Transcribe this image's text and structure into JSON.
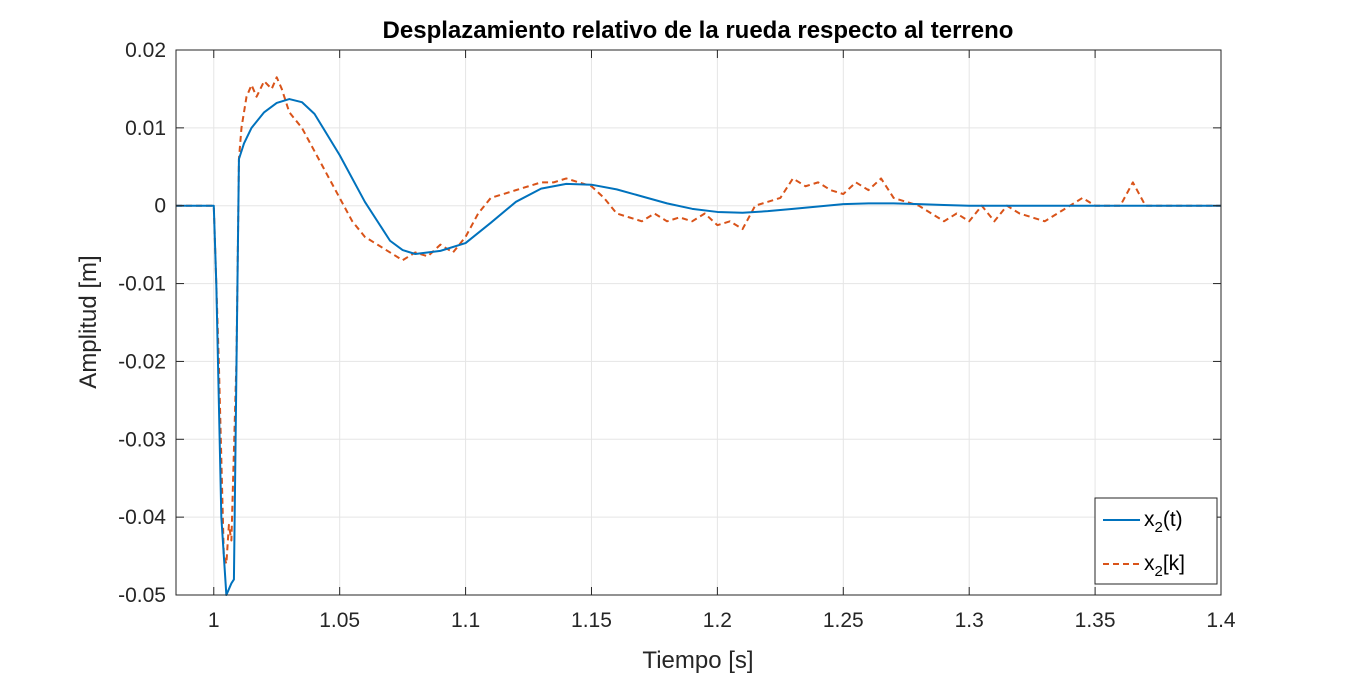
{
  "chart_data": {
    "type": "line",
    "title": "Desplazamiento relativo de la rueda respecto al terreno",
    "xlabel": "Tiempo [s]",
    "ylabel": "Amplitud [m]",
    "xlim": [
      0.985,
      1.4
    ],
    "ylim": [
      -0.05,
      0.02
    ],
    "xticks": [
      1,
      1.05,
      1.1,
      1.15,
      1.2,
      1.25,
      1.3,
      1.35,
      1.4
    ],
    "xtick_labels": [
      "1",
      "1.05",
      "1.1",
      "1.15",
      "1.2",
      "1.25",
      "1.3",
      "1.35",
      "1.4"
    ],
    "yticks": [
      -0.05,
      -0.04,
      -0.03,
      -0.02,
      -0.01,
      0,
      0.01,
      0.02
    ],
    "ytick_labels": [
      "-0.05",
      "-0.04",
      "-0.03",
      "-0.02",
      "-0.01",
      "0",
      "0.01",
      "0.02"
    ],
    "grid": true,
    "legend_position": "bottom-right",
    "series": [
      {
        "name": "x2(t)",
        "color": "#0072BD",
        "style": "solid",
        "x": [
          0.985,
          1.0,
          1.001,
          1.002,
          1.003,
          1.005,
          1.007,
          1.008,
          1.01,
          1.012,
          1.015,
          1.02,
          1.025,
          1.03,
          1.035,
          1.04,
          1.05,
          1.06,
          1.07,
          1.075,
          1.08,
          1.09,
          1.1,
          1.11,
          1.12,
          1.13,
          1.14,
          1.15,
          1.16,
          1.17,
          1.18,
          1.19,
          1.2,
          1.21,
          1.22,
          1.23,
          1.24,
          1.25,
          1.26,
          1.27,
          1.28,
          1.29,
          1.3,
          1.32,
          1.35,
          1.4
        ],
        "y": [
          0,
          0,
          -0.01,
          -0.025,
          -0.04,
          -0.05,
          -0.0485,
          -0.048,
          0.006,
          0.008,
          0.01,
          0.012,
          0.0132,
          0.0137,
          0.0133,
          0.0118,
          0.0065,
          0.0005,
          -0.0045,
          -0.0057,
          -0.0062,
          -0.0058,
          -0.0048,
          -0.0022,
          0.0005,
          0.0022,
          0.0028,
          0.0027,
          0.0021,
          0.0012,
          0.0003,
          -0.0004,
          -0.0008,
          -0.0009,
          -0.0007,
          -0.0004,
          -0.0001,
          0.0002,
          0.0003,
          0.0003,
          0.0002,
          0.0001,
          0,
          0,
          0,
          0
        ]
      },
      {
        "name": "x2[k]",
        "color": "#D95319",
        "style": "dashed",
        "x": [
          0.985,
          1.0,
          1.002,
          1.004,
          1.005,
          1.006,
          1.007,
          1.009,
          1.01,
          1.011,
          1.013,
          1.015,
          1.017,
          1.02,
          1.023,
          1.025,
          1.027,
          1.03,
          1.035,
          1.04,
          1.045,
          1.05,
          1.055,
          1.06,
          1.065,
          1.07,
          1.075,
          1.08,
          1.085,
          1.09,
          1.095,
          1.1,
          1.105,
          1.11,
          1.115,
          1.12,
          1.125,
          1.13,
          1.135,
          1.14,
          1.145,
          1.15,
          1.155,
          1.16,
          1.165,
          1.17,
          1.175,
          1.18,
          1.185,
          1.19,
          1.195,
          1.2,
          1.205,
          1.21,
          1.215,
          1.225,
          1.23,
          1.235,
          1.24,
          1.245,
          1.25,
          1.255,
          1.26,
          1.265,
          1.27,
          1.28,
          1.29,
          1.295,
          1.3,
          1.305,
          1.31,
          1.315,
          1.32,
          1.33,
          1.34,
          1.345,
          1.35,
          1.36,
          1.365,
          1.37,
          1.4
        ],
        "y": [
          0,
          0,
          -0.02,
          -0.045,
          -0.046,
          -0.041,
          -0.043,
          -0.02,
          0.006,
          0.01,
          0.014,
          0.0155,
          0.014,
          0.016,
          0.015,
          0.0165,
          0.015,
          0.012,
          0.01,
          0.007,
          0.004,
          0.001,
          -0.002,
          -0.004,
          -0.005,
          -0.006,
          -0.007,
          -0.006,
          -0.0065,
          -0.005,
          -0.006,
          -0.004,
          -0.001,
          0.001,
          0.0015,
          0.002,
          0.0025,
          0.003,
          0.003,
          0.0035,
          0.003,
          0.0025,
          0.001,
          -0.001,
          -0.0015,
          -0.002,
          -0.001,
          -0.002,
          -0.0015,
          -0.002,
          -0.001,
          -0.0025,
          -0.002,
          -0.003,
          0,
          0.001,
          0.0035,
          0.0025,
          0.003,
          0.002,
          0.0015,
          0.003,
          0.002,
          0.0035,
          0.001,
          0,
          -0.002,
          -0.001,
          -0.002,
          0,
          -0.002,
          0,
          -0.001,
          -0.002,
          0,
          0.001,
          0,
          0,
          0.003,
          0,
          0
        ]
      }
    ]
  },
  "legend": {
    "items": [
      {
        "base": "x",
        "sub": "2",
        "suffix": "(t)"
      },
      {
        "base": "x",
        "sub": "2",
        "suffix": "[k]"
      }
    ]
  }
}
